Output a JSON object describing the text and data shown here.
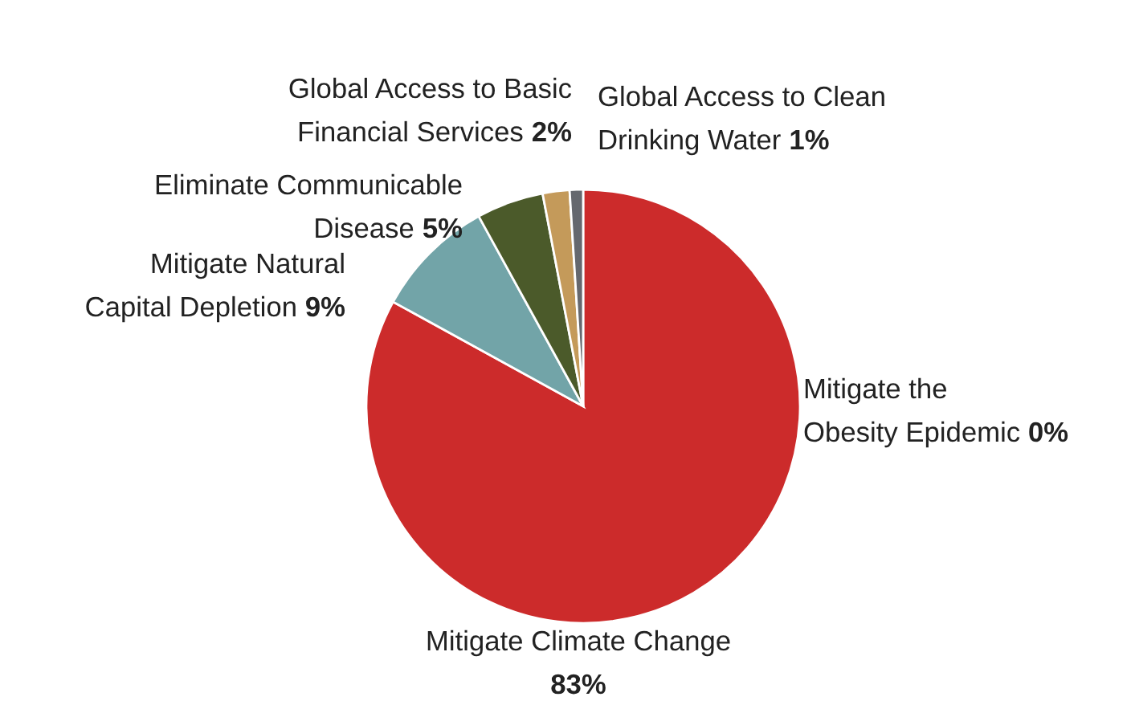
{
  "chart_data": {
    "type": "pie",
    "categories": [
      "Mitigate the\nObesity Epidemic",
      "Mitigate Climate Change",
      "Mitigate Natural\nCapital Depletion",
      "Eliminate Communicable\nDisease",
      "Global Access to Basic\nFinancial Services",
      "Global Access to Clean\nDrinking Water"
    ],
    "values": [
      0,
      83,
      9,
      5,
      2,
      1
    ],
    "value_labels": [
      "0%",
      "83%",
      "9%",
      "5%",
      "2%",
      "1%"
    ],
    "colors": [
      "#7a3b69",
      "#cc2b2b",
      "#72a4a8",
      "#4b5a2a",
      "#c49a5a",
      "#65686e"
    ]
  }
}
